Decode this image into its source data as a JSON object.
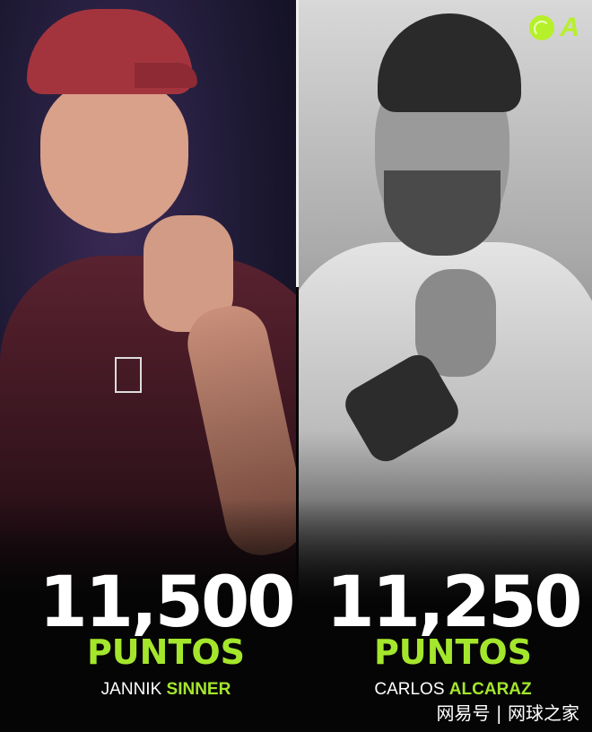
{
  "brand": {
    "logo_letter": "A",
    "accent": "#a4e62c",
    "icon": "tennis-ball-icon"
  },
  "players": [
    {
      "points": "11,500",
      "unit": "PUNTOS",
      "first_name": "JANNIK",
      "last_name": "SINNER"
    },
    {
      "points": "11,250",
      "unit": "PUNTOS",
      "first_name": "CARLOS",
      "last_name": "ALCARAZ"
    }
  ],
  "watermark": "网易号 | 网球之家"
}
